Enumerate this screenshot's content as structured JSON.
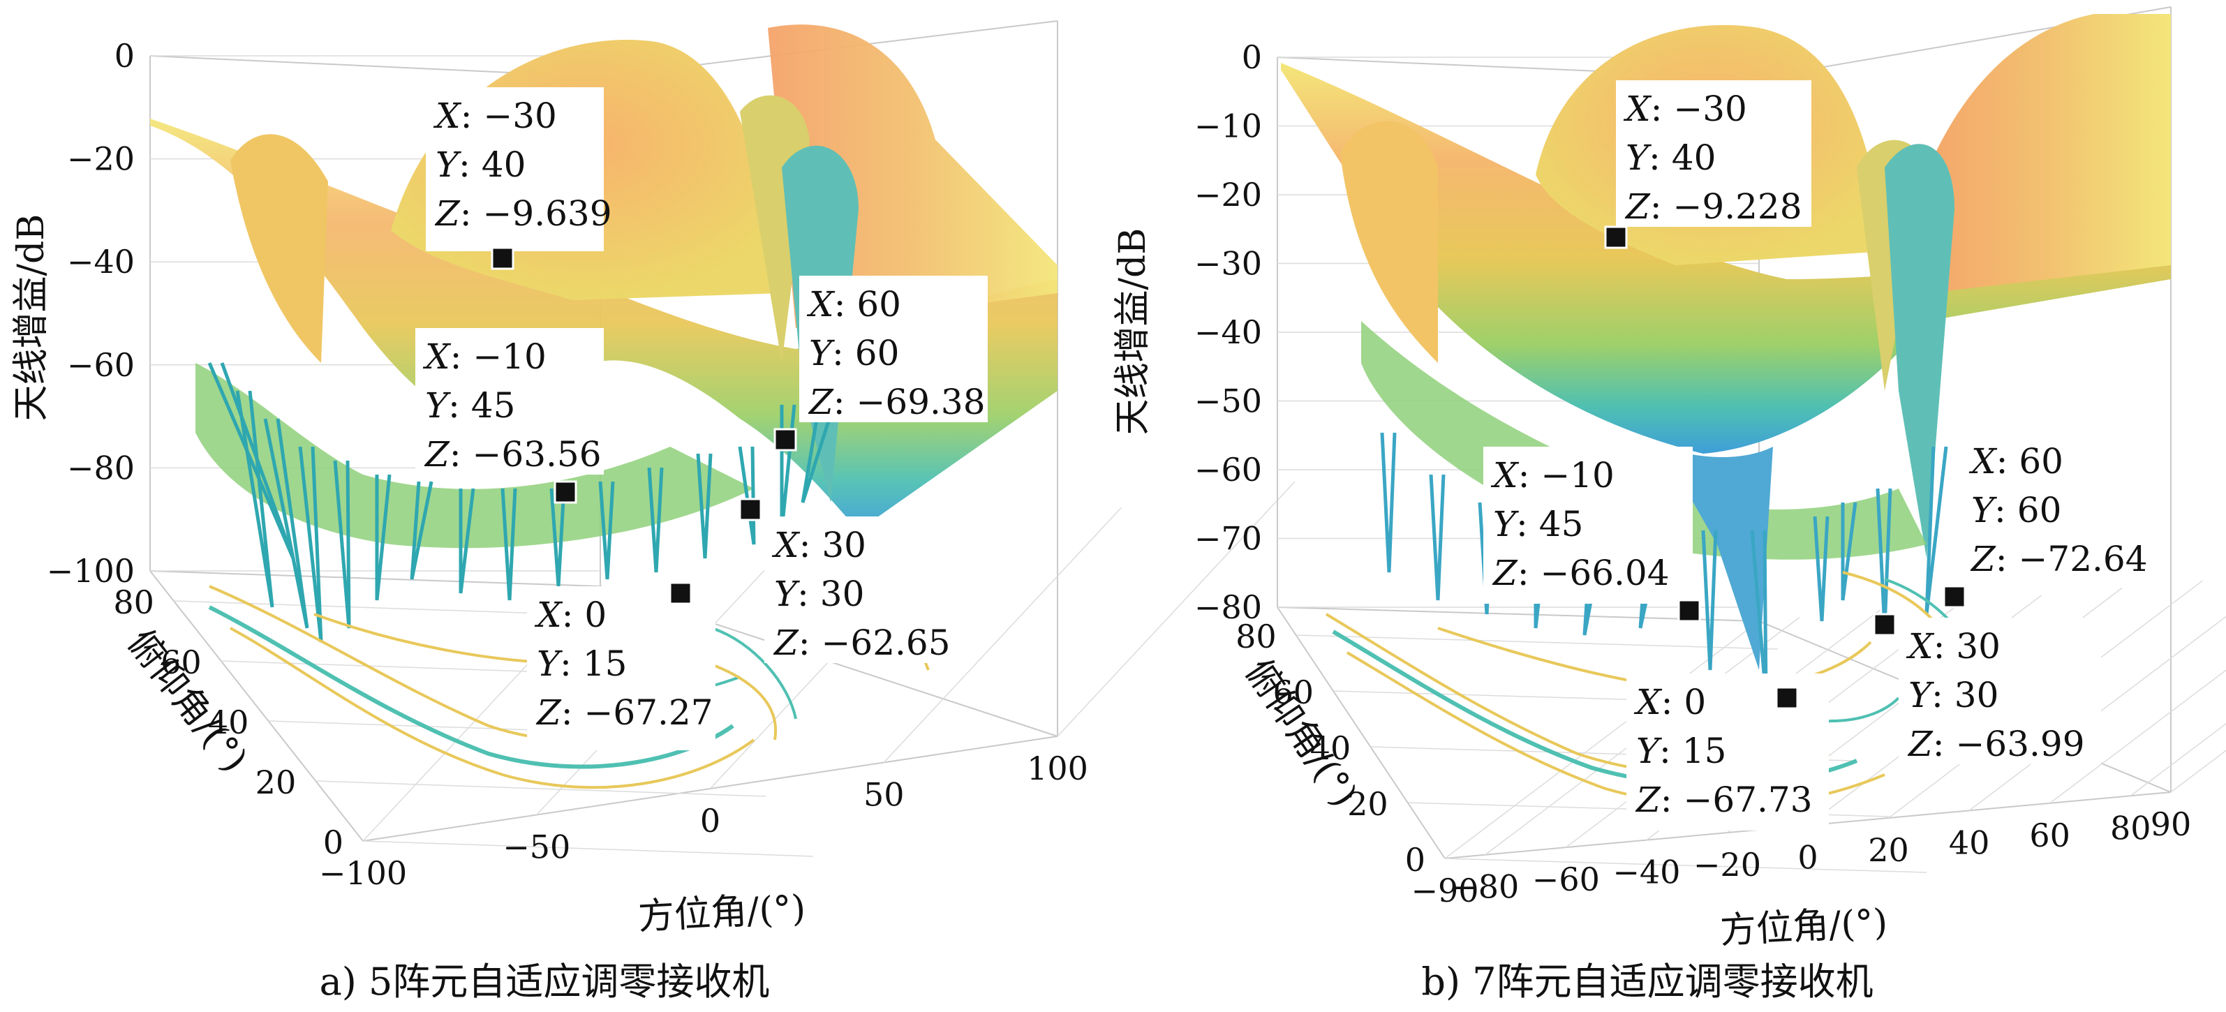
{
  "chart_data": [
    {
      "type": "surface3d",
      "caption": "a) 5阵元自适应调零接收机",
      "xlabel": "方位角/(°)",
      "ylabel": "俯仰角/(°)",
      "zlabel": "天线增益/dB",
      "xlim": [
        -100,
        100
      ],
      "ylim": [
        0,
        90
      ],
      "zlim": [
        -100,
        0
      ],
      "x_ticks": [
        "−100",
        "−50",
        "0",
        "50",
        "100"
      ],
      "y_ticks": [
        "0",
        "20",
        "40",
        "60",
        "80"
      ],
      "z_ticks": [
        "0",
        "−20",
        "−40",
        "−60",
        "−80",
        "−100"
      ],
      "grid": true,
      "contour_projection": true,
      "colormap": [
        "#3e9fd8",
        "#4fc0b2",
        "#9fd06a",
        "#e8c85a",
        "#f5a36a",
        "#f3e67a"
      ],
      "datatips": [
        {
          "X": "−30",
          "Y": "40",
          "Z": "−9.639"
        },
        {
          "X": "60",
          "Y": "60",
          "Z": "−69.38"
        },
        {
          "X": "−10",
          "Y": "45",
          "Z": "−63.56"
        },
        {
          "X": "30",
          "Y": "30",
          "Z": "−62.65"
        },
        {
          "X": "0",
          "Y": "15",
          "Z": "−67.27"
        }
      ]
    },
    {
      "type": "surface3d",
      "caption": "b) 7阵元自适应调零接收机",
      "xlabel": "方位角/(°)",
      "ylabel": "俯仰角/(°)",
      "zlabel": "天线增益/dB",
      "xlim": [
        -90,
        90
      ],
      "ylim": [
        0,
        90
      ],
      "zlim": [
        -80,
        0
      ],
      "x_ticks": [
        "−90",
        "−80",
        "−60",
        "−40",
        "−20",
        "0",
        "20",
        "40",
        "60",
        "80",
        "90"
      ],
      "y_ticks": [
        "0",
        "20",
        "40",
        "60",
        "80"
      ],
      "z_ticks": [
        "0",
        "−10",
        "−20",
        "−30",
        "−40",
        "−50",
        "−60",
        "−70",
        "−80"
      ],
      "grid": true,
      "contour_projection": true,
      "colormap": [
        "#3e9fd8",
        "#4fc0b2",
        "#9fd06a",
        "#e8c85a",
        "#f5a36a",
        "#f3e67a"
      ],
      "datatips": [
        {
          "X": "−30",
          "Y": "40",
          "Z": "−9.228"
        },
        {
          "X": "−10",
          "Y": "45",
          "Z": "−66.04"
        },
        {
          "X": "60",
          "Y": "60",
          "Z": "−72.64"
        },
        {
          "X": "30",
          "Y": "30",
          "Z": "−63.99"
        },
        {
          "X": "0",
          "Y": "15",
          "Z": "−67.73"
        }
      ]
    }
  ]
}
